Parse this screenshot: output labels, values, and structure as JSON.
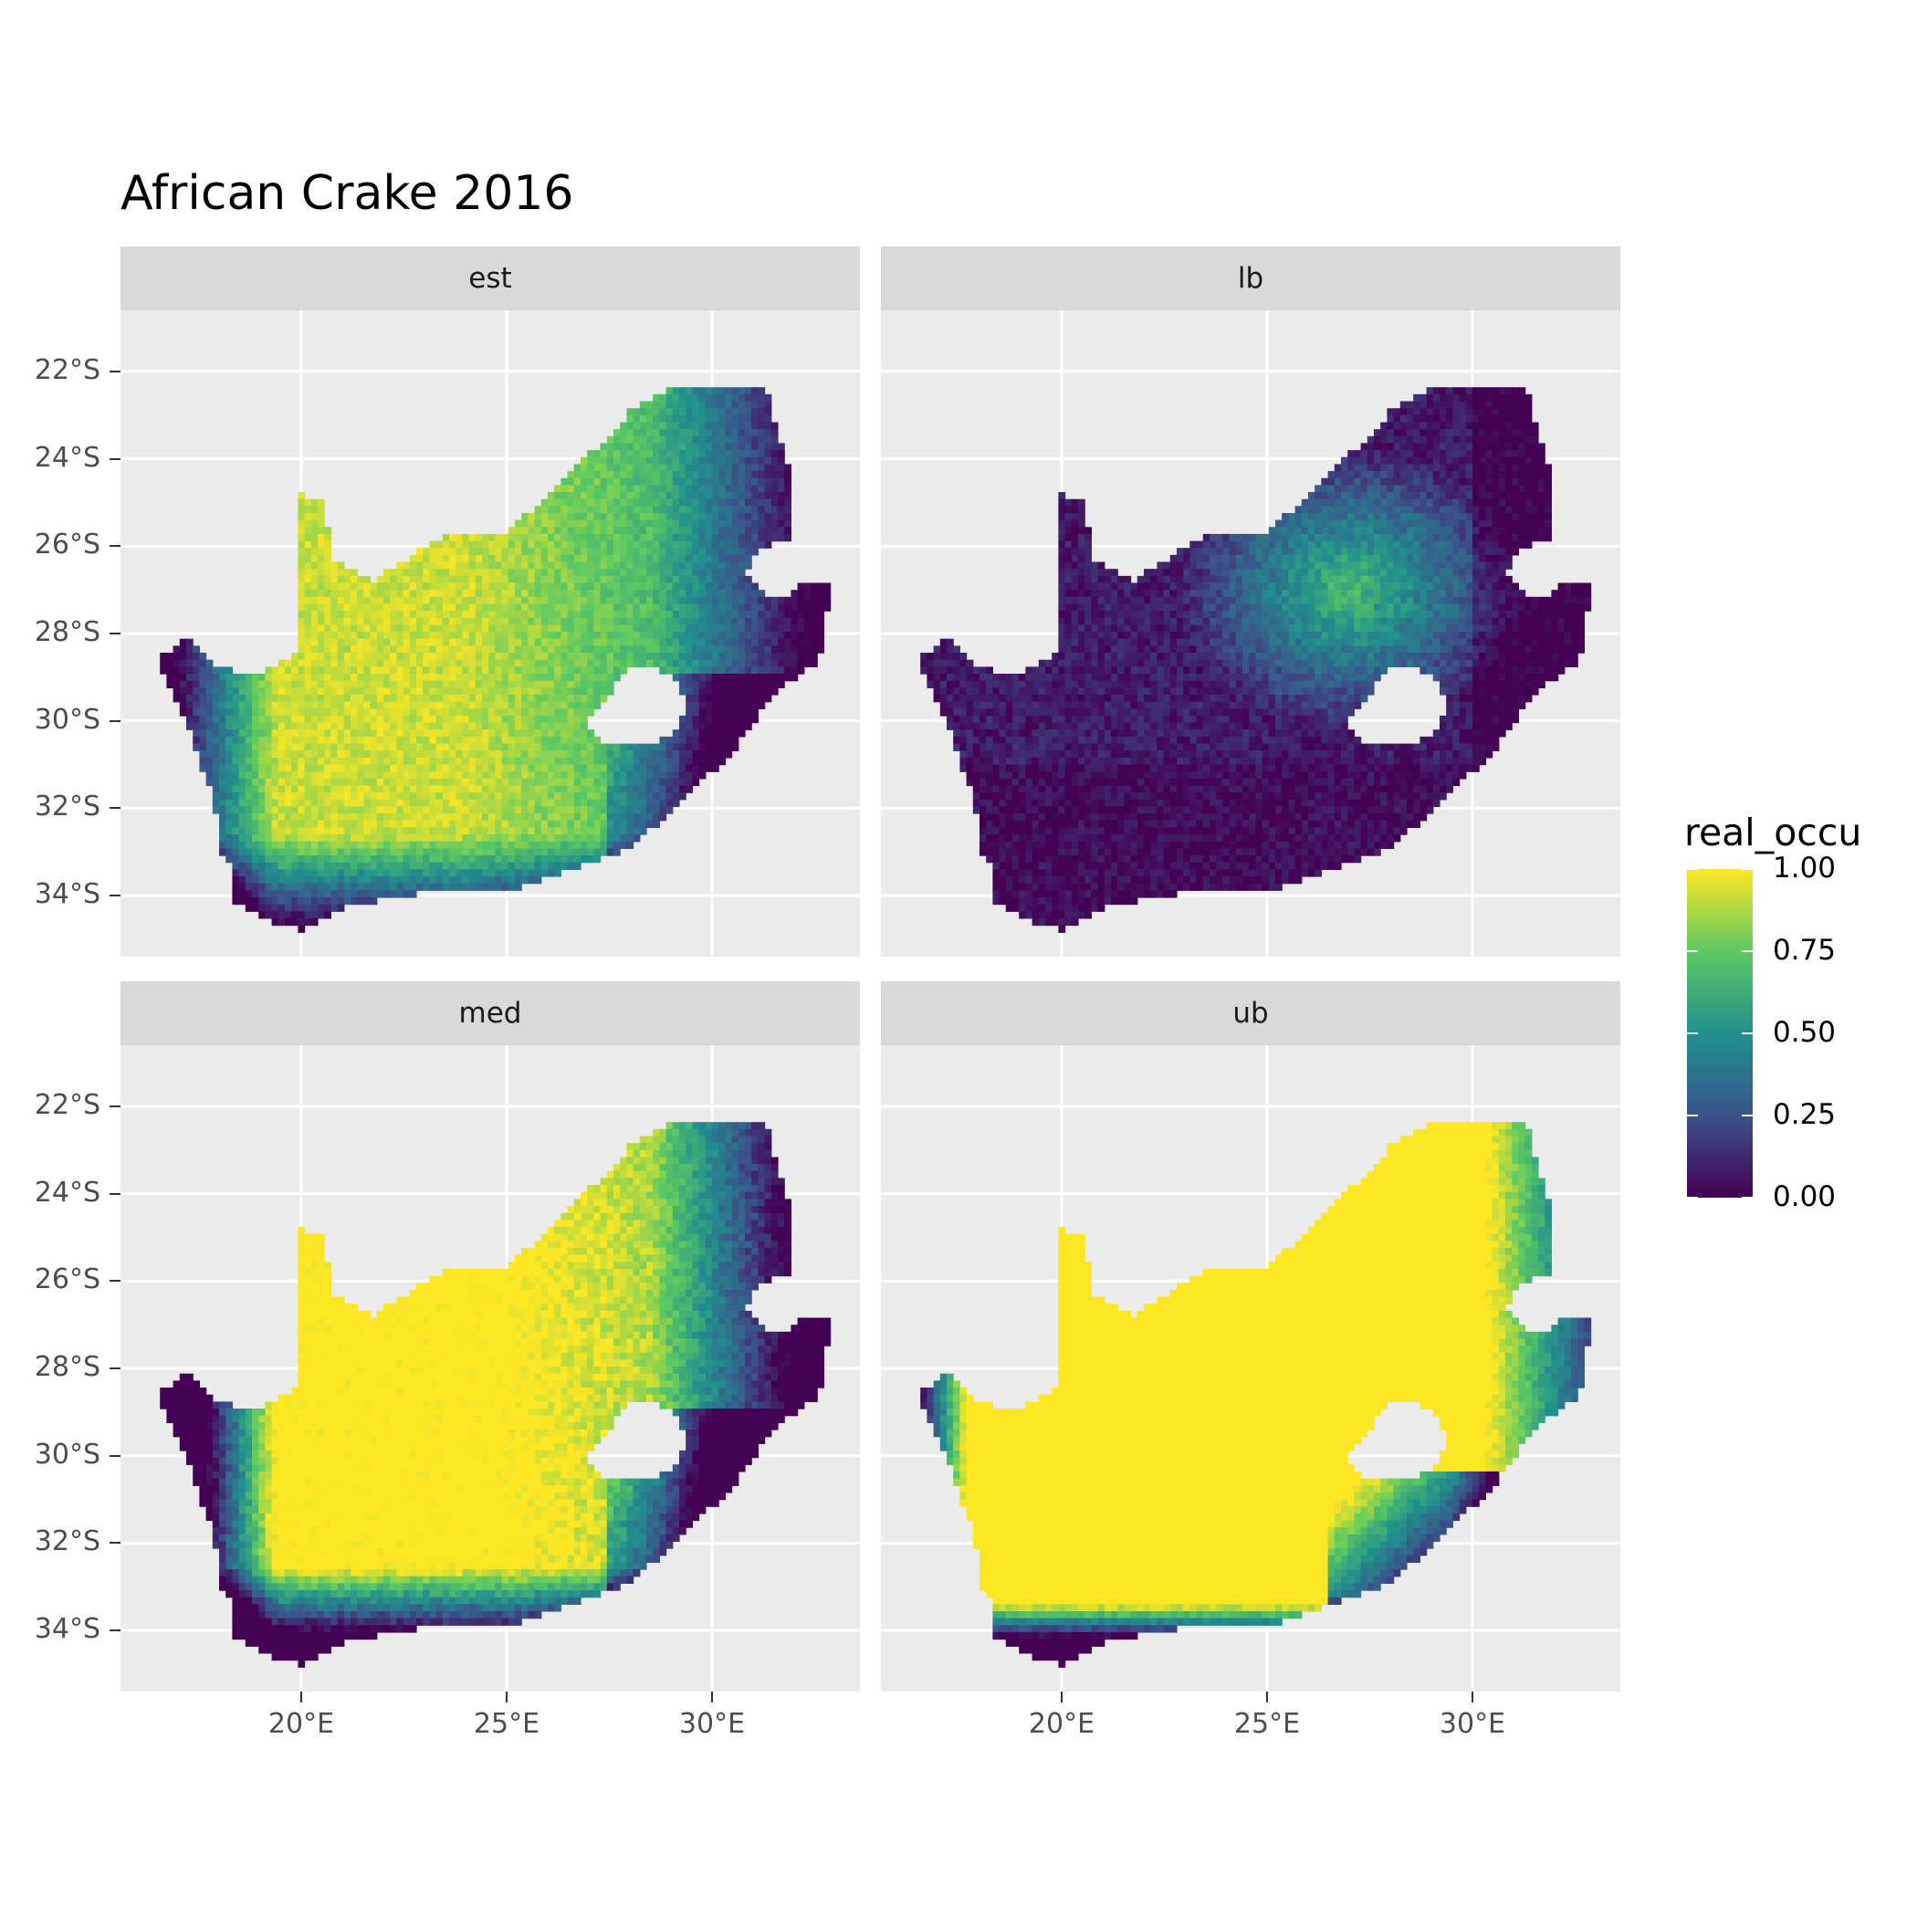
{
  "title": "African Crake 2016",
  "facets": [
    {
      "label": "est",
      "field": "est"
    },
    {
      "label": "lb",
      "field": "lb"
    },
    {
      "label": "med",
      "field": "med"
    },
    {
      "label": "ub",
      "field": "ub"
    }
  ],
  "x_axis": {
    "ticks": [
      20,
      25,
      30
    ],
    "tick_labels": [
      "20°E",
      "25°E",
      "30°E"
    ],
    "range": [
      15.6,
      33.6
    ]
  },
  "y_axis": {
    "ticks": [
      -22,
      -24,
      -26,
      -28,
      -30,
      -32,
      -34
    ],
    "tick_labels": [
      "22°S",
      "24°S",
      "26°S",
      "28°S",
      "30°S",
      "32°S",
      "34°S"
    ],
    "range": [
      -35.4,
      -20.6
    ]
  },
  "legend": {
    "title": "real_occu",
    "labels": [
      "1.00",
      "0.75",
      "0.50",
      "0.25",
      "0.00"
    ],
    "values": [
      1.0,
      0.75,
      0.5,
      0.25,
      0.0
    ],
    "colormap": "viridis",
    "colors": [
      "#440154",
      "#3b528b",
      "#21908d",
      "#5dc962",
      "#fde725"
    ]
  },
  "chart_data": {
    "type": "heatmap",
    "title": "African Crake 2016",
    "color_variable": "real_occu",
    "color_range": [
      0,
      1
    ],
    "facet_labels": [
      "est",
      "lb",
      "med",
      "ub"
    ],
    "x_ticks": [
      "20°E",
      "25°E",
      "30°E"
    ],
    "y_ticks": [
      "22°S",
      "24°S",
      "26°S",
      "28°S",
      "30°S",
      "32°S",
      "34°S"
    ],
    "xlim": [
      15.6,
      33.6
    ],
    "ylim": [
      -35.4,
      -20.6
    ],
    "grid": true,
    "legend_position": "right",
    "region_outline_lonlat": [
      [
        16.45,
        -28.6
      ],
      [
        17.2,
        -28.1
      ],
      [
        17.9,
        -28.8
      ],
      [
        19.0,
        -28.9
      ],
      [
        19.9,
        -28.4
      ],
      [
        19.9,
        -24.8
      ],
      [
        20.5,
        -24.9
      ],
      [
        20.8,
        -26.3
      ],
      [
        21.7,
        -26.8
      ],
      [
        22.7,
        -26.2
      ],
      [
        23.6,
        -25.7
      ],
      [
        24.9,
        -25.8
      ],
      [
        25.8,
        -25.0
      ],
      [
        26.5,
        -24.3
      ],
      [
        27.4,
        -23.6
      ],
      [
        28.0,
        -22.9
      ],
      [
        29.0,
        -22.4
      ],
      [
        30.3,
        -22.3
      ],
      [
        31.3,
        -22.4
      ],
      [
        31.9,
        -24.3
      ],
      [
        31.95,
        -25.9
      ],
      [
        31.2,
        -26.0
      ],
      [
        30.8,
        -26.6
      ],
      [
        31.3,
        -27.1
      ],
      [
        31.8,
        -27.2
      ],
      [
        32.1,
        -26.9
      ],
      [
        32.9,
        -26.9
      ],
      [
        32.6,
        -28.6
      ],
      [
        31.5,
        -29.4
      ],
      [
        30.6,
        -30.6
      ],
      [
        29.0,
        -32.1
      ],
      [
        27.8,
        -33.0
      ],
      [
        26.0,
        -33.6
      ],
      [
        25.0,
        -33.9
      ],
      [
        23.5,
        -33.9
      ],
      [
        22.3,
        -34.0
      ],
      [
        21.0,
        -34.3
      ],
      [
        20.0,
        -34.8
      ],
      [
        19.3,
        -34.6
      ],
      [
        18.8,
        -34.3
      ],
      [
        18.4,
        -34.2
      ],
      [
        18.3,
        -33.4
      ],
      [
        18.0,
        -32.9
      ],
      [
        17.9,
        -31.9
      ],
      [
        17.2,
        -30.0
      ],
      [
        16.8,
        -29.2
      ]
    ],
    "lesotho_hole_lonlat": [
      [
        27.0,
        -30.0
      ],
      [
        28.0,
        -28.7
      ],
      [
        29.0,
        -28.9
      ],
      [
        29.4,
        -29.6
      ],
      [
        29.1,
        -30.2
      ],
      [
        28.5,
        -30.6
      ],
      [
        27.7,
        -30.6
      ],
      [
        27.1,
        -30.4
      ]
    ],
    "facet_summaries": [
      {
        "facet": "est",
        "pattern": "high (0.85-1.0) across interior and west-central plateau; low (0.0-0.2) along south coast, east coast lowlands and far west coast"
      },
      {
        "facet": "lb",
        "pattern": "mostly low (0.0-0.3) with moderate values (0.4-0.7) over north-central interior"
      },
      {
        "facet": "med",
        "pattern": "similar to est with sharper contrast; interior near 1.0, coastal margins near 0.0"
      },
      {
        "facet": "ub",
        "pattern": "near 1.0 almost everywhere; low values only along south and east coastal fringes"
      }
    ]
  }
}
